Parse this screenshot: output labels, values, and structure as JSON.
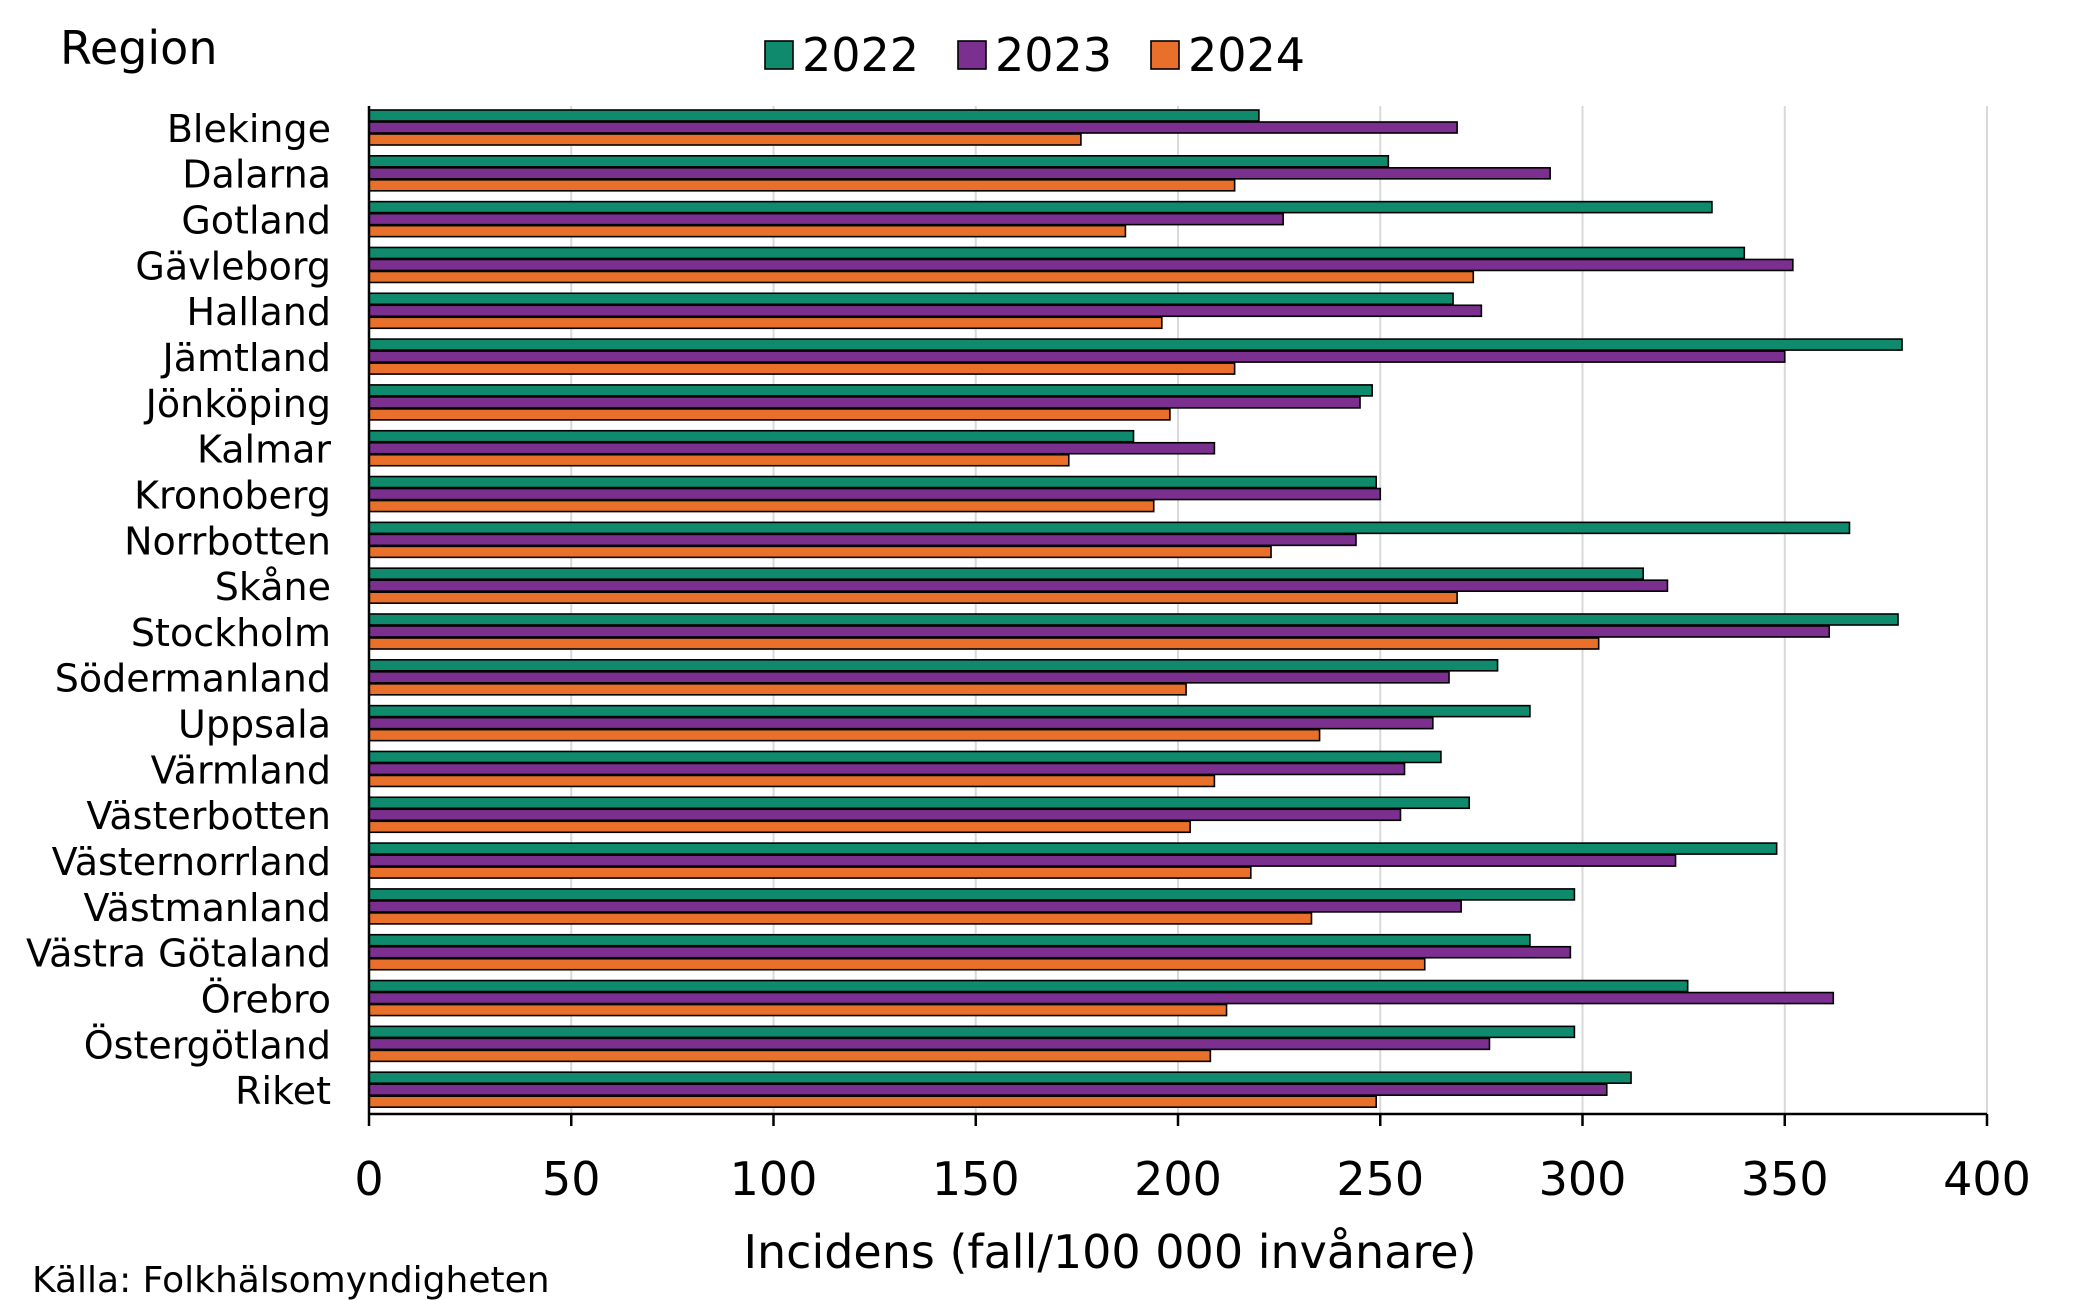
{
  "chart_data": {
    "type": "bar",
    "orientation": "horizontal",
    "category_axis_title": "Region",
    "xlabel": "Incidens (fall/100 000 invånare)",
    "xlim": [
      0,
      400
    ],
    "xticks": [
      "0",
      "50",
      "100",
      "150",
      "200",
      "250",
      "300",
      "350",
      "400"
    ],
    "grid": "vertical",
    "legend_position": "top-center",
    "categories": [
      "Blekinge",
      "Dalarna",
      "Gotland",
      "Gävleborg",
      "Halland",
      "Jämtland",
      "Jönköping",
      "Kalmar",
      "Kronoberg",
      "Norrbotten",
      "Skåne",
      "Stockholm",
      "Södermanland",
      "Uppsala",
      "Värmland",
      "Västerbotten",
      "Västernorrland",
      "Västmanland",
      "Västra Götaland",
      "Örebro",
      "Östergötland",
      "Riket"
    ],
    "series": [
      {
        "name": "2022",
        "color": "#0f8a6d",
        "values": [
          220,
          252,
          332,
          340,
          268,
          379,
          248,
          189,
          249,
          366,
          315,
          378,
          279,
          287,
          265,
          272,
          348,
          298,
          287,
          326,
          298,
          312
        ]
      },
      {
        "name": "2023",
        "color": "#7b2f8e",
        "values": [
          269,
          292,
          226,
          352,
          275,
          350,
          245,
          209,
          250,
          244,
          321,
          361,
          267,
          263,
          256,
          255,
          323,
          270,
          297,
          362,
          277,
          306
        ]
      },
      {
        "name": "2024",
        "color": "#e8702a",
        "values": [
          176,
          214,
          187,
          273,
          196,
          214,
          198,
          173,
          194,
          223,
          269,
          304,
          202,
          235,
          209,
          203,
          218,
          233,
          261,
          212,
          208,
          249
        ]
      }
    ]
  },
  "source_note": "Källa: Folkhälsomyndigheten"
}
